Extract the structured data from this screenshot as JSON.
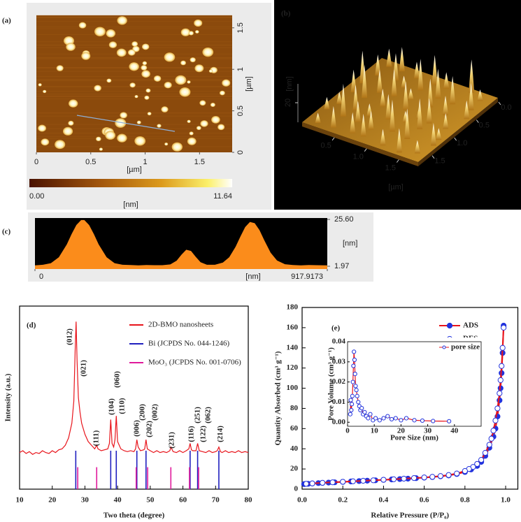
{
  "afm_2d": {
    "label": "(a)",
    "xlim": [
      0,
      1.8
    ],
    "ylim": [
      0,
      1.65
    ],
    "xticks": [
      0,
      0.5,
      1,
      1.5
    ],
    "yticks": [
      0,
      0.5,
      1,
      1.5
    ],
    "xlabel": "[µm]",
    "ylabel": "[µm]",
    "colorbar": {
      "min": {
        "value": 0,
        "label": "0.00"
      },
      "max": 11.64,
      "unit": "[nm]"
    }
  },
  "afm_3d": {
    "label": "(b)",
    "zlabel": "[nm]",
    "zticks": [
      20
    ],
    "xlim": [
      0,
      1.8
    ],
    "ylim": [
      0,
      1.8
    ],
    "xticks": [
      0.5,
      {
        "value": 1,
        "label": "1.0"
      },
      1.5
    ],
    "yticks": [
      {
        "value": 0,
        "label": "0.0"
      },
      0.5,
      {
        "value": 1,
        "label": "1.0"
      },
      1.5
    ],
    "xlabel": "[µm]"
  },
  "chart_data": [
    {
      "type": "area",
      "label": "(c)",
      "xlabel": "[nm]",
      "ylabel": "[nm]",
      "color": "#fb8c1b",
      "xlim": [
        0,
        917.9173
      ],
      "ylim": [
        1.97,
        25.6
      ],
      "xticks": [
        0,
        917.9173
      ],
      "yticks": [
        {
          "value": 25.6,
          "label": "25.60"
        },
        1.97
      ],
      "x": [
        0,
        25,
        50,
        75,
        100,
        115,
        130,
        145,
        155,
        170,
        185,
        200,
        225,
        250,
        275,
        300,
        325,
        350,
        375,
        400,
        425,
        445,
        460,
        475,
        490,
        505,
        520,
        540,
        565,
        590,
        610,
        630,
        645,
        660,
        675,
        690,
        705,
        720,
        740,
        760,
        785,
        810,
        835,
        860,
        885,
        917.9173
      ],
      "values": [
        2.4,
        2.7,
        3.5,
        6.5,
        13,
        18.2,
        22.8,
        25.3,
        25.3,
        22.8,
        18.2,
        13,
        6.5,
        3.5,
        2.7,
        2.6,
        2.4,
        2.6,
        2.5,
        2.5,
        2.9,
        4.8,
        7.8,
        10.3,
        9.7,
        6.7,
        4,
        2.7,
        2.7,
        3.8,
        6.5,
        11.8,
        16.9,
        21.7,
        24.3,
        23.7,
        20.2,
        15.1,
        8.8,
        4.9,
        3,
        2.6,
        2.4,
        2.6,
        2.5,
        2.4
      ]
    },
    {
      "type": "line",
      "label": "(d)",
      "xlabel": "Two theta (degree)",
      "ylabel": "Intensity (a.u.)",
      "xlim": [
        10,
        80
      ],
      "ylim": [
        0,
        100
      ],
      "xticks": [
        10,
        20,
        30,
        40,
        50,
        60,
        70,
        80
      ],
      "series": [
        {
          "name": "2D-BMO nanosheets",
          "color": "#e8141b",
          "x": [
            10,
            11,
            12,
            13,
            14,
            15,
            16,
            17,
            18,
            19,
            20,
            21,
            22,
            23,
            24,
            25,
            26,
            26.6,
            27,
            27.3,
            27.6,
            28,
            28.5,
            29,
            30,
            31,
            32,
            33,
            33.6,
            34,
            35,
            36,
            37,
            37.5,
            37.9,
            38.3,
            38.8,
            39.2,
            39.6,
            40,
            41,
            42,
            43,
            44,
            45,
            45.5,
            45.9,
            46.3,
            47,
            48,
            48.3,
            48.7,
            49.1,
            50,
            51,
            52,
            53,
            54,
            55,
            56,
            56.3,
            57,
            58,
            59,
            60,
            61,
            61.8,
            62.2,
            62.6,
            63,
            64,
            64.5,
            65,
            66,
            67,
            68,
            69,
            70,
            70.5,
            71,
            71.5,
            72,
            73,
            74,
            75,
            76,
            77,
            78,
            79,
            80
          ],
          "values": [
            20,
            21,
            19.5,
            20.5,
            19,
            20,
            19.5,
            21,
            20,
            19.5,
            21,
            20,
            21.5,
            22,
            24,
            28,
            36,
            48,
            75,
            91.5,
            70,
            50,
            42,
            36,
            30,
            26,
            24,
            22,
            24,
            22,
            21,
            21.5,
            22,
            25,
            38,
            25,
            23,
            27,
            40,
            26,
            22,
            21,
            20.5,
            21,
            20.5,
            22,
            27,
            23,
            21,
            21.5,
            22,
            27,
            22,
            21,
            20,
            21,
            20,
            20.5,
            20,
            21,
            23,
            20.5,
            20,
            21,
            20,
            21,
            22,
            25,
            21.5,
            21,
            21,
            25,
            21,
            20.5,
            20,
            21,
            20,
            20.5,
            21,
            23,
            20.5,
            20,
            21,
            20,
            20.5,
            20,
            21,
            20,
            20.5,
            20
          ]
        },
        {
          "name": "Bi (JCPDS No. 044-1246)",
          "color": "#1f1fbf",
          "type": "stick",
          "x": [
            27.2,
            37.9,
            39.6,
            45.9,
            48.7,
            62.2,
            64.5,
            71
          ],
          "values": [
            21,
            21,
            21,
            21,
            21,
            21,
            21,
            21
          ]
        },
        {
          "name": "MoO₃ (JCPDS No. 001-0706)",
          "color": "#e0199b",
          "type": "stick",
          "x": [
            27.8,
            33.6,
            45.7,
            49.2,
            56.3,
            62,
            64.8
          ],
          "values": [
            12,
            12,
            12,
            12,
            12,
            12,
            12
          ]
        }
      ],
      "annotations": [
        {
          "text": "(012)",
          "x": 25.4,
          "color": "#1f1fbf"
        },
        {
          "text": "(021)",
          "x": 29.7,
          "color": "#e0199b"
        },
        {
          "text": "(111)",
          "x": 33.5,
          "color": "#e0199b"
        },
        {
          "text": "(104)",
          "x": 38.3,
          "color": "#1f1fbf"
        },
        {
          "text": "(060)",
          "x": 40,
          "color": "#e0199b"
        },
        {
          "text": "(110)",
          "x": 41.5,
          "color": "#1f1fbf"
        },
        {
          "text": "(006)",
          "x": 46,
          "color": "#1f1fbf"
        },
        {
          "text": "(200)",
          "x": 47.7,
          "color": "#e0199b"
        },
        {
          "text": "(202)",
          "x": 49.8,
          "color": "#1f1fbf"
        },
        {
          "text": "(002)",
          "x": 51.5,
          "color": "#e0199b"
        },
        {
          "text": "(231)",
          "x": 56.7,
          "color": "#e0199b"
        },
        {
          "text": "(116)",
          "x": 62.7,
          "color": "#1f1fbf"
        },
        {
          "text": "(251)",
          "x": 64.6,
          "color": "#e0199b"
        },
        {
          "text": "(122)",
          "x": 66.3,
          "color": "#1f1fbf"
        },
        {
          "text": "(062)",
          "x": 67.8,
          "color": "#e0199b"
        },
        {
          "text": "(214)",
          "x": 71.5,
          "color": "#1f1fbf"
        }
      ]
    },
    {
      "type": "line",
      "label": "(e)",
      "xlabel": "Relative Pressure (P/P₀)",
      "ylabel": "Quantity Absorbed (cm³ g⁻¹)",
      "xlim": [
        0,
        1.06
      ],
      "ylim": [
        0,
        180
      ],
      "xticks": [
        {
          "value": 0,
          "label": "0.0"
        },
        0.2,
        0.4,
        0.6,
        0.8,
        {
          "value": 1,
          "label": "1.0"
        }
      ],
      "yticks": [
        0,
        20,
        40,
        60,
        80,
        100,
        120,
        140,
        160,
        180
      ],
      "series": [
        {
          "name": "ADS",
          "color": "#e8141b",
          "marker_color": "#2233dd",
          "marker": "filled",
          "x": [
            0.01,
            0.03,
            0.05,
            0.08,
            0.1,
            0.13,
            0.16,
            0.2,
            0.24,
            0.28,
            0.32,
            0.36,
            0.4,
            0.44,
            0.48,
            0.52,
            0.56,
            0.6,
            0.64,
            0.68,
            0.72,
            0.76,
            0.8,
            0.83,
            0.86,
            0.88,
            0.9,
            0.92,
            0.94,
            0.95,
            0.96,
            0.97,
            0.975,
            0.98,
            0.985,
            0.99
          ],
          "values": [
            5,
            5.3,
            5.6,
            6,
            6.2,
            6.5,
            6.8,
            7.2,
            7.6,
            8,
            8.4,
            8.8,
            9.2,
            9.6,
            10,
            10.4,
            10.9,
            11.4,
            12,
            12.7,
            13.6,
            15,
            17,
            19.5,
            23,
            27,
            33,
            41,
            52,
            60,
            72,
            88,
            100,
            115,
            135,
            162
          ]
        },
        {
          "name": "DES",
          "color": "#e8141b",
          "marker_color": "#2233dd",
          "marker": "open",
          "x": [
            0.99,
            0.985,
            0.98,
            0.975,
            0.97,
            0.96,
            0.95,
            0.94,
            0.93,
            0.92,
            0.9,
            0.88,
            0.86,
            0.84,
            0.82,
            0.8,
            0.76,
            0.72,
            0.68,
            0.64,
            0.6,
            0.55,
            0.5,
            0.45,
            0.4,
            0.35,
            0.3,
            0.25,
            0.2,
            0.15,
            0.1,
            0.05,
            0.02
          ],
          "values": [
            160,
            140,
            122,
            108,
            95,
            80,
            68,
            58,
            50,
            44,
            36,
            29,
            25,
            22,
            20,
            18,
            15.5,
            14,
            13,
            12.2,
            11.6,
            11,
            10.4,
            9.8,
            9.3,
            8.8,
            8.3,
            7.8,
            7.3,
            6.8,
            6.3,
            5.7,
            5.3
          ]
        }
      ],
      "inset": {
        "type": "line",
        "xlabel": "Pore Size (nm)",
        "ylabel": "Pore Volume (cm³ g⁻¹)",
        "xlim": [
          0,
          50
        ],
        "ylim": [
          -0.002,
          0.04
        ],
        "xticks": [
          0,
          10,
          20,
          30,
          40
        ],
        "yticks": [
          {
            "value": 0,
            "label": "0.00"
          },
          0.01,
          0.02,
          0.03,
          0.04
        ],
        "series": [
          {
            "name": "pore size",
            "color": "#e8141b",
            "marker_color": "#2233dd",
            "marker": "open",
            "x": [
              1,
              1.2,
              1.4,
              1.6,
              1.8,
              2,
              2.2,
              2.4,
              2.6,
              2.8,
              3,
              3.3,
              3.6,
              4,
              4.4,
              4.8,
              5.3,
              5.8,
              6.4,
              7,
              7.7,
              8.5,
              9.5,
              10.5,
              12,
              13.5,
              15,
              16.5,
              18,
              20,
              22,
              25,
              28,
              32,
              38
            ],
            "values": [
              0.004,
              0.011,
              0.006,
              0.009,
              0.013,
              0.02,
              0.028,
              0.035,
              0.031,
              0.024,
              0.018,
              0.016,
              0.013,
              0.01,
              0.008,
              0.006,
              0.007,
              0.004,
              0.005,
              0.003,
              0.002,
              0.004,
              0.001,
              0.002,
              0.001,
              0.002,
              0.003,
              0.0015,
              0.002,
              0.001,
              0.002,
              0.001,
              0.0008,
              0.0006,
              0.0005
            ]
          }
        ]
      }
    }
  ]
}
